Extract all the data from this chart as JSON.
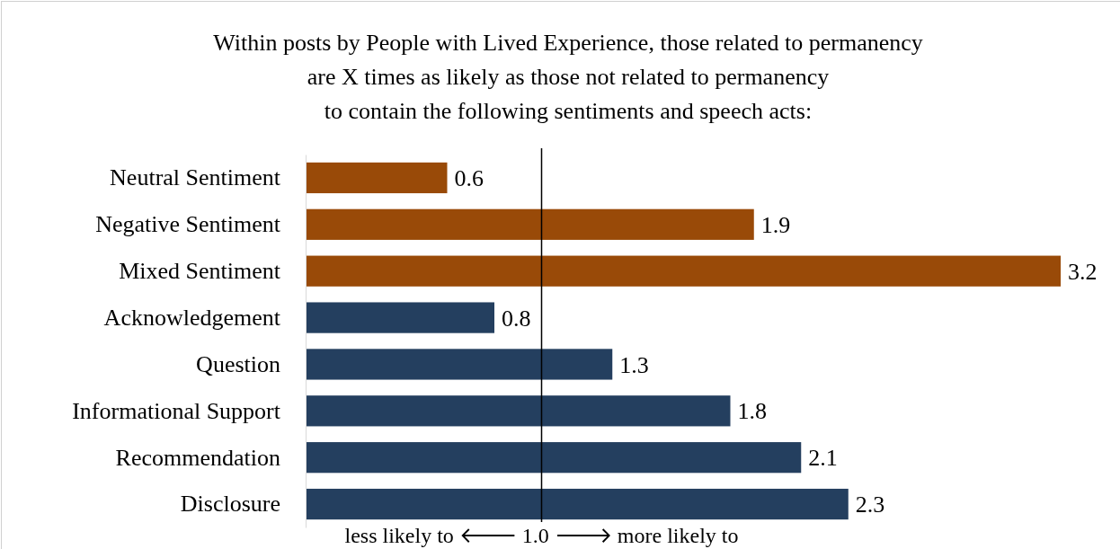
{
  "chart_data": {
    "type": "bar",
    "orientation": "horizontal",
    "title": "Within posts by People with Lived Experience, those related to permanency\nare X times as likely as those not related to permanency\nto contain the following sentiments and speech acts:",
    "categories": [
      "Neutral Sentiment",
      "Negative Sentiment",
      "Mixed Sentiment",
      "Acknowledgement",
      "Question",
      "Informational Support",
      "Recommendation",
      "Disclosure"
    ],
    "values": [
      0.6,
      1.9,
      3.2,
      0.8,
      1.3,
      1.8,
      2.1,
      2.3
    ],
    "colors": [
      "#994a08",
      "#994a08",
      "#994a08",
      "#243f5f",
      "#243f5f",
      "#243f5f",
      "#243f5f",
      "#243f5f"
    ],
    "xlabel": "less likely to 🡐 1.0 🡒 more likely to",
    "ref_lines": [
      {
        "axis": "x",
        "value": 1,
        "color": "#000000"
      }
    ],
    "data_labels": true
  }
}
